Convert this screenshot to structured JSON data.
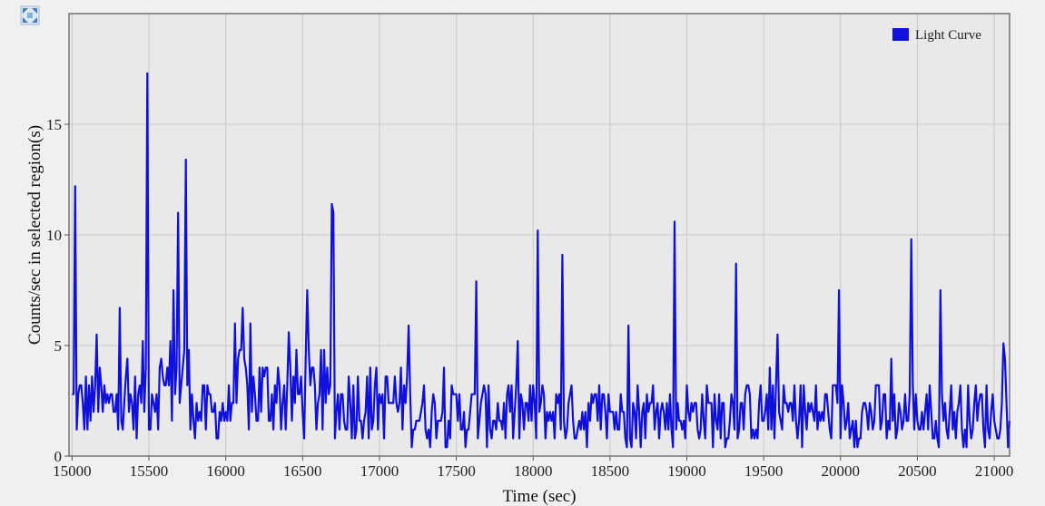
{
  "toolbar": {
    "icon": "fullscreen-icon"
  },
  "colors": {
    "series": "#1010dd",
    "plot_bg": "#e9e9e9",
    "grid": "#c9c9c9",
    "frame": "#555555",
    "page_bg": "#f0f0f0"
  },
  "chart_data": {
    "type": "line",
    "title": "",
    "xlabel": "Time (sec)",
    "ylabel": "Counts/sec in selected region(s)",
    "xlim": [
      14980,
      21100
    ],
    "ylim": [
      0,
      20
    ],
    "grid": true,
    "legend": "top-right",
    "x_ticks": [
      15000,
      15500,
      16000,
      16500,
      17000,
      17500,
      18000,
      18500,
      19000,
      19500,
      20000,
      20500,
      21000
    ],
    "y_ticks": [
      0,
      5,
      10,
      15
    ],
    "series": [
      {
        "name": "Light Curve",
        "color": "#1010dd",
        "bin_sec": 10,
        "baseline_segments": [
          {
            "x_start": 15000,
            "x_end": 15450,
            "mean": 2.3,
            "spread": 1.6
          },
          {
            "x_start": 15450,
            "x_end": 15800,
            "mean": 3.2,
            "spread": 2.2
          },
          {
            "x_start": 15800,
            "x_end": 16050,
            "mean": 2.0,
            "spread": 1.4
          },
          {
            "x_start": 16050,
            "x_end": 16650,
            "mean": 2.8,
            "spread": 2.0
          },
          {
            "x_start": 16650,
            "x_end": 17200,
            "mean": 2.4,
            "spread": 1.7
          },
          {
            "x_start": 17200,
            "x_end": 21100,
            "mean": 1.9,
            "spread": 1.4
          }
        ],
        "peaks": [
          {
            "x": 15025,
            "y": 12.2
          },
          {
            "x": 15160,
            "y": 5.5
          },
          {
            "x": 15310,
            "y": 6.7
          },
          {
            "x": 15490,
            "y": 17.3
          },
          {
            "x": 15660,
            "y": 7.5
          },
          {
            "x": 15690,
            "y": 11.0
          },
          {
            "x": 15740,
            "y": 13.4
          },
          {
            "x": 16110,
            "y": 6.7
          },
          {
            "x": 16530,
            "y": 7.5
          },
          {
            "x": 16690,
            "y": 11.4
          },
          {
            "x": 16700,
            "y": 11.0
          },
          {
            "x": 17190,
            "y": 5.9
          },
          {
            "x": 17630,
            "y": 7.9
          },
          {
            "x": 18030,
            "y": 10.2
          },
          {
            "x": 18190,
            "y": 9.1
          },
          {
            "x": 18620,
            "y": 5.9
          },
          {
            "x": 18920,
            "y": 10.6
          },
          {
            "x": 19320,
            "y": 8.7
          },
          {
            "x": 19590,
            "y": 5.5
          },
          {
            "x": 19990,
            "y": 7.5
          },
          {
            "x": 20460,
            "y": 9.8
          },
          {
            "x": 20650,
            "y": 7.5
          },
          {
            "x": 21060,
            "y": 5.1
          }
        ]
      }
    ]
  }
}
